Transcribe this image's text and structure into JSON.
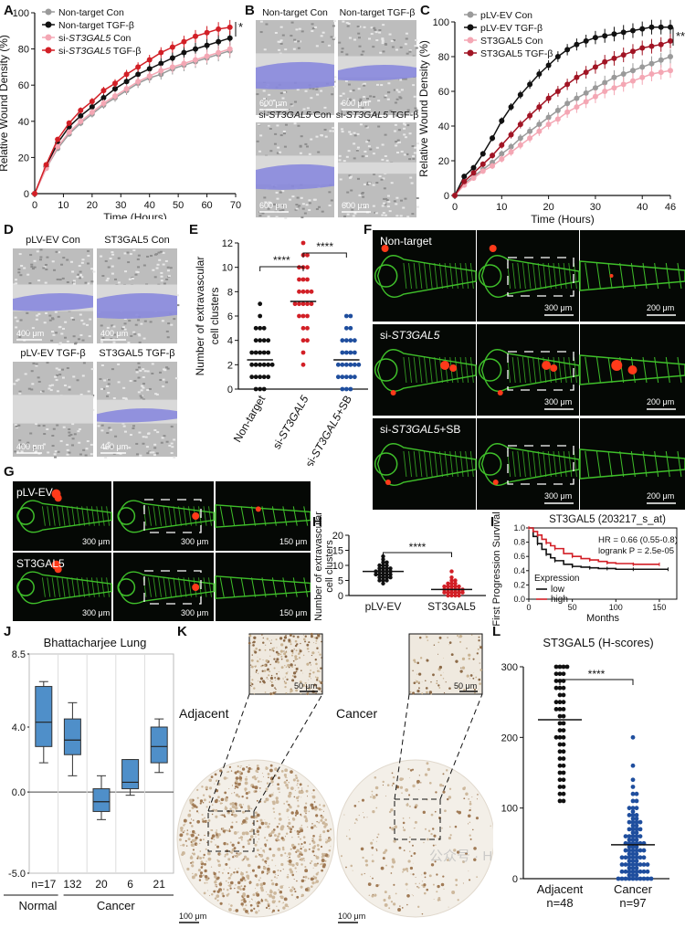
{
  "panels": {
    "A": "A",
    "B": "B",
    "C": "C",
    "D": "D",
    "E": "E",
    "F": "F",
    "G": "G",
    "H": "H",
    "I": "I",
    "J": "J",
    "K": "K",
    "L": "L"
  },
  "colors": {
    "grey": "#9a9a9a",
    "black": "#111111",
    "pink": "#f4a7b4",
    "red": "#d21f26",
    "darkred": "#a11424",
    "blue": "#1f4e9e",
    "purple": "#8888dd",
    "box_blue": "#4f8fc9",
    "fish_green": "#3fbf2a",
    "fish_red": "#ff3a1a"
  },
  "chart_data": [
    {
      "panel": "A",
      "type": "line",
      "xlabel": "Time (Hours)",
      "ylabel": "Relative Wound Density (%)",
      "xlim": [
        0,
        70
      ],
      "ylim": [
        0,
        100
      ],
      "xticks": [
        "0",
        "10",
        "20",
        "30",
        "40",
        "50",
        "60",
        "70"
      ],
      "yticks": [
        "0",
        "20",
        "40",
        "60",
        "80",
        "100"
      ],
      "x": [
        0,
        4,
        8,
        12,
        16,
        20,
        24,
        28,
        32,
        36,
        40,
        44,
        48,
        52,
        56,
        60,
        64,
        68
      ],
      "legend": [
        "Non-target Con",
        "Non-target TGF-β",
        "si-ST3GAL5 Con",
        "si-ST3GAL5 TGF-β"
      ],
      "legend_italic_parts": [
        "",
        "",
        "ST3GAL5",
        "ST3GAL5"
      ],
      "series": [
        {
          "name": "Non-target Con",
          "values": [
            0,
            14,
            25,
            33,
            39,
            44,
            49,
            53,
            57,
            61,
            64,
            66,
            69,
            71,
            73,
            75,
            77,
            79
          ]
        },
        {
          "name": "Non-target TGF-β",
          "values": [
            0,
            15,
            28,
            37,
            43,
            48,
            53,
            58,
            62,
            66,
            69,
            72,
            75,
            78,
            80,
            82,
            84,
            86
          ]
        },
        {
          "name": "si-ST3GAL5 Con",
          "values": [
            0,
            14,
            26,
            34,
            40,
            45,
            50,
            54,
            58,
            62,
            65,
            68,
            70,
            72,
            74,
            76,
            78,
            80
          ]
        },
        {
          "name": "si-ST3GAL5 TGF-β",
          "values": [
            0,
            16,
            30,
            39,
            46,
            51,
            57,
            61,
            66,
            70,
            74,
            78,
            81,
            84,
            87,
            89,
            91,
            92
          ]
        }
      ],
      "significance": "*"
    },
    {
      "panel": "C",
      "type": "line",
      "xlabel": "Time (Hours)",
      "ylabel": "Relative Wound Density (%)",
      "xlim": [
        0,
        46
      ],
      "ylim": [
        0,
        100
      ],
      "xticks": [
        "0",
        "10",
        "20",
        "30",
        "40",
        "46"
      ],
      "yticks": [
        "0",
        "20",
        "40",
        "60",
        "80",
        "100"
      ],
      "x": [
        0,
        2,
        4,
        6,
        8,
        10,
        12,
        14,
        16,
        18,
        20,
        22,
        24,
        26,
        28,
        30,
        32,
        34,
        36,
        38,
        40,
        42,
        44,
        46
      ],
      "legend": [
        "pLV-EV Con",
        "pLV-EV TGF-β",
        "ST3GAL5 Con",
        "ST3GAL5 TGF-β"
      ],
      "series": [
        {
          "name": "pLV-EV Con",
          "values": [
            0,
            7,
            11,
            15,
            19,
            24,
            28,
            33,
            37,
            41,
            45,
            49,
            53,
            56,
            59,
            62,
            65,
            68,
            70,
            72,
            74,
            76,
            78,
            80
          ]
        },
        {
          "name": "pLV-EV TGF-β",
          "values": [
            0,
            11,
            16,
            24,
            33,
            43,
            51,
            58,
            64,
            70,
            75,
            80,
            84,
            87,
            89,
            91,
            92,
            93,
            94,
            95,
            96,
            97,
            97,
            97
          ]
        },
        {
          "name": "ST3GAL5 Con",
          "values": [
            0,
            6,
            10,
            14,
            17,
            21,
            25,
            29,
            33,
            37,
            41,
            44,
            48,
            51,
            54,
            57,
            60,
            62,
            64,
            66,
            68,
            70,
            71,
            72
          ]
        },
        {
          "name": "ST3GAL5 TGF-β",
          "values": [
            0,
            8,
            13,
            18,
            23,
            29,
            35,
            41,
            46,
            51,
            56,
            60,
            64,
            68,
            71,
            74,
            77,
            79,
            81,
            83,
            85,
            86,
            87,
            89
          ]
        }
      ],
      "significance": "**"
    },
    {
      "panel": "E",
      "type": "scatter",
      "ylabel": "Number of extravascular cell clusters",
      "ylim": [
        0,
        12
      ],
      "yticks": [
        "0",
        "2",
        "4",
        "6",
        "8",
        "10",
        "12"
      ],
      "categories": [
        "Non-target",
        "si-ST3GAL5",
        "si-ST3GAL5+SB"
      ],
      "means": [
        2.4,
        7.2,
        2.4
      ],
      "sig_labels": [
        "****",
        "****"
      ],
      "series": [
        {
          "values": [
            7,
            6,
            5,
            5,
            5,
            4,
            4,
            4,
            4,
            3,
            3,
            3,
            3,
            3,
            2,
            2,
            2,
            2,
            2,
            2,
            1,
            1,
            1,
            1,
            1,
            0,
            0,
            0
          ]
        },
        {
          "values": [
            12,
            11,
            11,
            10,
            10,
            10,
            9,
            9,
            9,
            8,
            8,
            8,
            8,
            7,
            7,
            7,
            7,
            7,
            6,
            6,
            6,
            5,
            5,
            4,
            4,
            3,
            2
          ]
        },
        {
          "values": [
            6,
            6,
            5,
            5,
            4,
            4,
            4,
            4,
            3,
            3,
            3,
            3,
            2,
            2,
            2,
            2,
            2,
            2,
            1,
            1,
            1,
            1,
            1,
            0,
            0,
            0
          ]
        }
      ]
    },
    {
      "panel": "H",
      "type": "scatter",
      "ylabel": "Number of extravascular cell clusters",
      "ylim": [
        0,
        20
      ],
      "yticks": [
        "0",
        "5",
        "10",
        "15",
        "20"
      ],
      "categories": [
        "pLV-EV",
        "ST3GAL5"
      ],
      "means": [
        8,
        2
      ],
      "sig_labels": [
        "****"
      ],
      "series": [
        {
          "values": [
            13,
            12,
            11,
            11,
            10,
            10,
            10,
            9,
            9,
            9,
            9,
            8,
            8,
            8,
            8,
            8,
            7,
            7,
            7,
            7,
            7,
            6,
            6,
            6,
            6,
            5,
            5,
            5,
            4
          ]
        },
        {
          "values": [
            8,
            6,
            5,
            5,
            4,
            4,
            4,
            3,
            3,
            3,
            3,
            3,
            2,
            2,
            2,
            2,
            2,
            2,
            1,
            1,
            1,
            1,
            1,
            1,
            0,
            0,
            0,
            0
          ]
        }
      ]
    },
    {
      "panel": "I",
      "type": "line",
      "title": "ST3GAL5 (203217_s_at)",
      "xlabel": "Months",
      "ylabel": "First Progression Survival",
      "xlim": [
        0,
        170
      ],
      "ylim": [
        0,
        1
      ],
      "xticks": [
        "0",
        "50",
        "100",
        "150"
      ],
      "yticks": [
        "0.0",
        "0.2",
        "0.4",
        "0.6",
        "0.8",
        "1.0"
      ],
      "annotation": [
        "HR = 0.66 (0.55-0.8)",
        "logrank P = 2.5e-05"
      ],
      "legend_title": "Expression",
      "legend": [
        "low",
        "high"
      ],
      "series": [
        {
          "name": "low",
          "x": [
            0,
            5,
            10,
            15,
            20,
            25,
            30,
            40,
            50,
            60,
            70,
            80,
            90,
            100,
            120,
            140,
            160
          ],
          "values": [
            1.0,
            0.88,
            0.78,
            0.7,
            0.63,
            0.58,
            0.54,
            0.49,
            0.46,
            0.45,
            0.44,
            0.43,
            0.43,
            0.42,
            0.42,
            0.42,
            0.42
          ]
        },
        {
          "name": "high",
          "x": [
            0,
            5,
            10,
            15,
            20,
            25,
            30,
            40,
            50,
            60,
            70,
            80,
            90,
            100,
            120,
            140,
            150
          ],
          "values": [
            1.0,
            0.95,
            0.9,
            0.84,
            0.79,
            0.75,
            0.71,
            0.64,
            0.6,
            0.57,
            0.55,
            0.53,
            0.51,
            0.5,
            0.49,
            0.49,
            0.49
          ]
        }
      ]
    },
    {
      "panel": "J",
      "type": "box",
      "title": "Bhattacharjee Lung",
      "ylim": [
        -5,
        8.5
      ],
      "yticks": [
        "8.5",
        "4.0",
        "0.0",
        "-5.0"
      ],
      "n_prefix": "n=",
      "n": [
        "17",
        "132",
        "20",
        "6",
        "21"
      ],
      "groups": [
        "Normal",
        "Cancer"
      ],
      "boxes": [
        {
          "min": 1.8,
          "q1": 2.8,
          "median": 4.3,
          "q3": 6.5,
          "max": 6.8
        },
        {
          "min": 1.0,
          "q1": 2.3,
          "median": 3.2,
          "q3": 4.5,
          "max": 5.5
        },
        {
          "min": -1.7,
          "q1": -1.2,
          "median": -0.6,
          "q3": 0.2,
          "max": 1.0
        },
        {
          "min": -0.2,
          "q1": 0.2,
          "median": 0.6,
          "q3": 2.0,
          "max": 2.0
        },
        {
          "min": 1.2,
          "q1": 1.8,
          "median": 2.8,
          "q3": 4.0,
          "max": 4.5
        }
      ]
    },
    {
      "panel": "L",
      "type": "scatter",
      "title": "ST3GAL5 (H-scores)",
      "ylim": [
        0,
        300
      ],
      "yticks": [
        "0",
        "100",
        "200",
        "300"
      ],
      "categories": [
        "Adjacent",
        "Cancer"
      ],
      "n_labels": [
        "n=48",
        "n=97"
      ],
      "means": [
        225,
        48
      ],
      "sig_labels": [
        "****"
      ],
      "series": [
        {
          "values": [
            300,
            300,
            300,
            300,
            290,
            290,
            290,
            280,
            280,
            280,
            270,
            270,
            270,
            260,
            260,
            250,
            250,
            250,
            240,
            240,
            240,
            230,
            230,
            220,
            220,
            210,
            210,
            200,
            200,
            200,
            190,
            190,
            180,
            180,
            170,
            170,
            160,
            160,
            150,
            150,
            140,
            140,
            130,
            130,
            120,
            120,
            110,
            110
          ]
        },
        {
          "values": [
            200,
            160,
            140,
            130,
            120,
            120,
            110,
            110,
            100,
            100,
            100,
            90,
            90,
            90,
            80,
            80,
            80,
            80,
            70,
            70,
            70,
            70,
            60,
            60,
            60,
            60,
            60,
            50,
            50,
            50,
            50,
            50,
            50,
            40,
            40,
            40,
            40,
            40,
            40,
            30,
            30,
            30,
            30,
            30,
            30,
            30,
            20,
            20,
            20,
            20,
            20,
            20,
            20,
            20,
            10,
            10,
            10,
            10,
            10,
            10,
            10,
            10,
            0,
            0,
            0,
            0,
            0,
            0,
            0,
            0,
            0,
            0,
            5,
            5,
            15,
            15,
            25,
            25,
            35,
            35,
            45,
            45,
            55,
            55,
            65,
            65,
            75,
            75,
            85,
            85,
            95,
            45,
            35,
            25,
            15,
            5,
            55
          ]
        }
      ]
    }
  ],
  "B": {
    "labels": [
      "Non-target Con",
      "Non-target TGF-β",
      "si-ST3GAL5 Con",
      "si-ST3GAL5 TGF-β"
    ],
    "italic": [
      "",
      "",
      "ST3GAL5",
      "ST3GAL5"
    ],
    "scale": "600 μm"
  },
  "D": {
    "labels": [
      "pLV-EV Con",
      "ST3GAL5 Con",
      "pLV-EV TGF-β",
      "ST3GAL5 TGF-β"
    ],
    "scale": "400 μm"
  },
  "F": {
    "rows": [
      "Non-target",
      "si-ST3GAL5",
      "si-ST3GAL5+SB"
    ],
    "scale_mid": "300 μm",
    "scale_right": "200 μm"
  },
  "G": {
    "rows": [
      "pLV-EV",
      "ST3GAL5"
    ],
    "scale_left": "300 μm",
    "scale_mid": "300 μm",
    "scale_right": "150 μm"
  },
  "K": {
    "left_label": "Adjacent",
    "right_label": "Cancer",
    "scale_inset": "50 μm",
    "scale_main": "100 μm"
  },
  "watermark": "公众号 · Hunter-Genomics"
}
